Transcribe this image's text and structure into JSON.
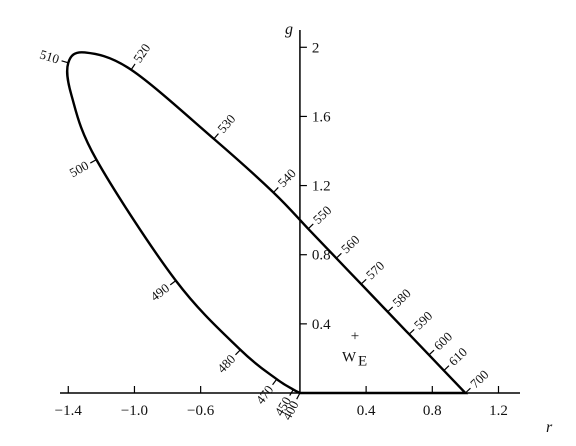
{
  "chart_data": {
    "type": "line",
    "x_label": "r",
    "y_label": "g",
    "xlim": [
      -1.45,
      1.33
    ],
    "ylim": [
      0,
      2.1
    ],
    "xticks": [
      {
        "value": -1.4,
        "label": "−1.4"
      },
      {
        "value": -1.0,
        "label": "−1.0"
      },
      {
        "value": -0.6,
        "label": "−0.6"
      },
      0.4,
      0.8,
      1.2
    ],
    "yticks": [
      0.4,
      0.8,
      1.2,
      1.6,
      2.0
    ],
    "series": [
      {
        "color": "#000000",
        "x": [
          0,
          -0.04,
          -0.14,
          -0.36,
          -0.75,
          -1.23,
          -1.38,
          -1.4,
          -1.3,
          -1.02,
          -0.52,
          -0.16,
          0.05,
          0.22,
          0.37,
          0.53,
          0.66,
          0.78,
          0.87,
          1.0
        ],
        "values": [
          0,
          0.02,
          0.08,
          0.25,
          0.65,
          1.35,
          1.72,
          1.91,
          1.97,
          1.87,
          1.47,
          1.16,
          0.95,
          0.78,
          0.63,
          0.47,
          0.34,
          0.22,
          0.13,
          0.0
        ],
        "wavelengths": [
          400,
          450,
          470,
          480,
          490,
          500,
          null,
          510,
          null,
          520,
          530,
          540,
          550,
          560,
          570,
          580,
          590,
          600,
          610,
          700
        ]
      }
    ],
    "annotation": {
      "x": 0.333,
      "y": 0.333,
      "marker": "+",
      "text": "W",
      "subscript": "E"
    }
  }
}
